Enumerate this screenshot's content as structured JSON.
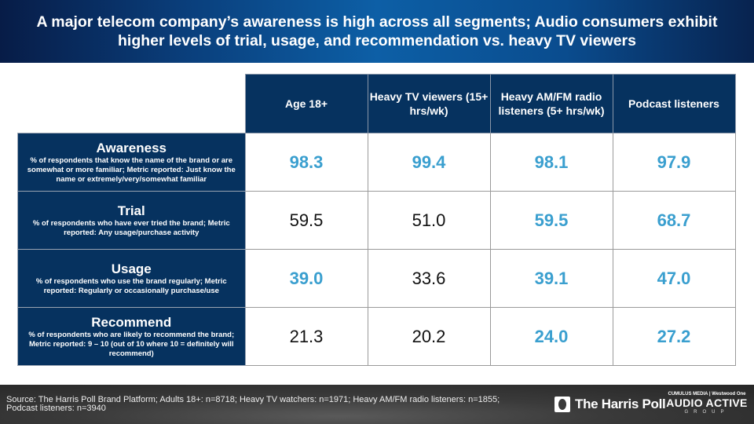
{
  "title": "A major telecom company’s awareness is high across all segments; Audio consumers exhibit higher levels of trial, usage, and recommendation vs. heavy TV viewers",
  "table": {
    "columns": [
      "Age 18+",
      "Heavy TV viewers (15+ hrs/wk)",
      "Heavy AM/FM radio listeners (5+ hrs/wk)",
      "Podcast listeners"
    ],
    "rows": [
      {
        "metric": "Awareness",
        "description": "% of respondents that know the name of the brand or are somewhat or more familiar; Metric reported: Just know the name or extremely/very/somewhat familiar",
        "values": [
          "98.3",
          "99.4",
          "98.1",
          "97.9"
        ],
        "highlighted": [
          true,
          true,
          true,
          true
        ]
      },
      {
        "metric": "Trial",
        "description": "% of respondents who have ever tried the brand; Metric reported: Any usage/purchase activity",
        "values": [
          "59.5",
          "51.0",
          "59.5",
          "68.7"
        ],
        "highlighted": [
          false,
          false,
          true,
          true
        ]
      },
      {
        "metric": "Usage",
        "description": "% of respondents who use the brand regularly; Metric reported: Regularly or occasionally purchase/use",
        "values": [
          "39.0",
          "33.6",
          "39.1",
          "47.0"
        ],
        "highlighted": [
          true,
          false,
          true,
          true
        ]
      },
      {
        "metric": "Recommend",
        "description": "% of respondents who are likely to recommend the brand; Metric reported: 9 – 10 (out of 10 where 10 = definitely will recommend)",
        "values": [
          "21.3",
          "20.2",
          "24.0",
          "27.2"
        ],
        "highlighted": [
          false,
          false,
          true,
          true
        ]
      }
    ]
  },
  "footer": {
    "source": "Source: The Harris Poll Brand Platform; Adults 18+: n=8718; Heavy TV watchers: n=1971; Heavy AM/FM radio listeners: n=1855; Podcast listeners: n=3940",
    "harris_logo": "The Harris Poll",
    "aag_top": "CUMULUS MEDIA | Westwood One",
    "aag_main": "AUDIO ACTIVE",
    "aag_sub": "GROUP"
  },
  "colors": {
    "header_bg": "#06325f",
    "highlight_value": "#3a9fcf",
    "normal_value": "#111111"
  }
}
